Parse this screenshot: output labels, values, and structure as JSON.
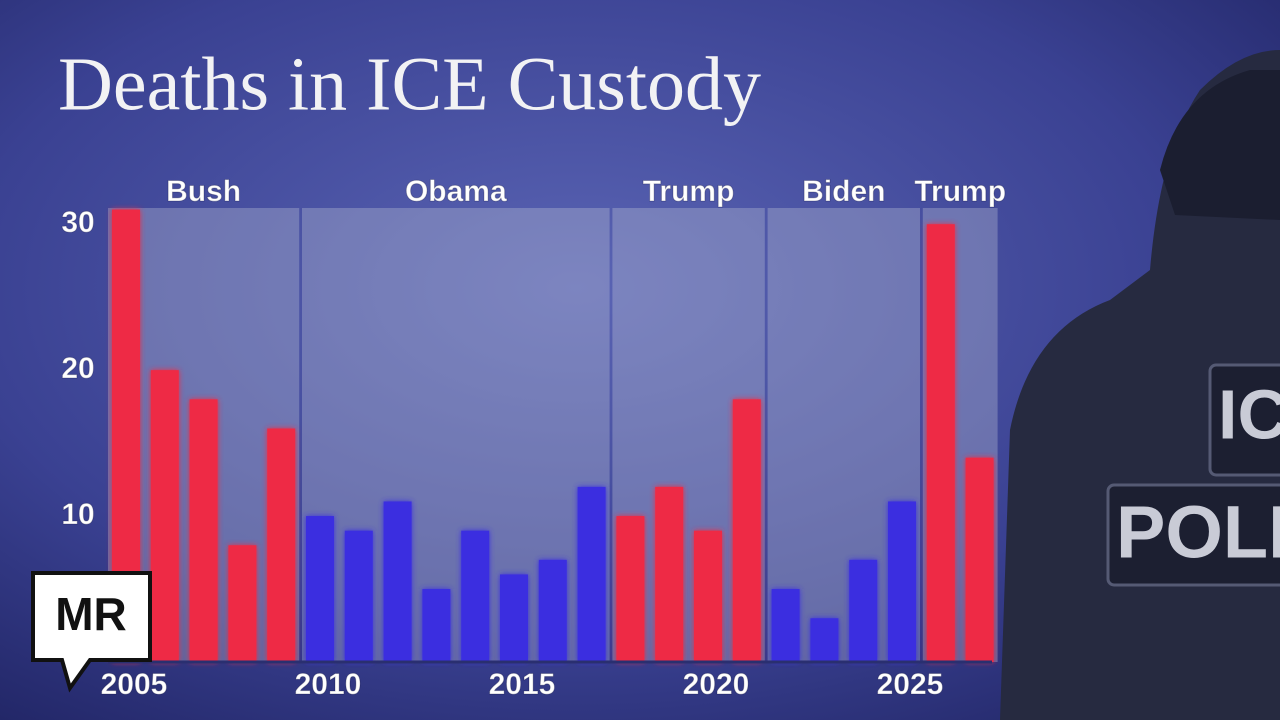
{
  "chart_data": {
    "type": "grouped-bar",
    "title": "Deaths in ICE Custody",
    "ylim": [
      0,
      32
    ],
    "yticks": [
      10,
      20,
      30
    ],
    "groups": [
      {
        "name": "Bush",
        "color": "#ee2a45",
        "categories": [
          "2005",
          null,
          null,
          null,
          null
        ],
        "values": [
          31,
          20,
          18,
          8,
          16
        ]
      },
      {
        "name": "Obama",
        "color": "#3a2ee0",
        "categories": [
          "2010",
          null,
          null,
          null,
          null,
          "2015",
          null,
          null
        ],
        "values": [
          10,
          9,
          11,
          5,
          9,
          6,
          7,
          12
        ]
      },
      {
        "name": "Trump",
        "color": "#ee2a45",
        "categories": [
          null,
          null,
          "2020",
          null
        ],
        "values": [
          10,
          12,
          9,
          18
        ]
      },
      {
        "name": "Biden",
        "color": "#3a2ee0",
        "categories": [
          null,
          null,
          null,
          "2025"
        ],
        "values": [
          5,
          3,
          7,
          11
        ]
      },
      {
        "name": "Trump",
        "color": "#ee2a45",
        "categories": [
          null,
          null
        ],
        "values": [
          30,
          14
        ]
      }
    ]
  },
  "logo": "MR",
  "vest_text": [
    "IC",
    "POLI"
  ]
}
